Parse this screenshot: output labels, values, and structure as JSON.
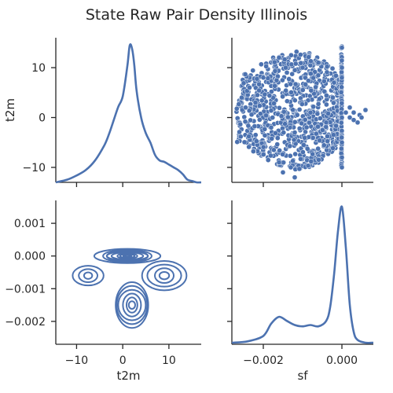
{
  "figure": {
    "title": "State Raw Pair Density Illinois"
  },
  "colors": {
    "series": "#4c72b0",
    "axis": "#262626",
    "background": "#ffffff"
  },
  "chart_data": [
    {
      "id": "t2m-vs-t2m",
      "type": "line",
      "kind": "kde",
      "panel": "top-left",
      "xlabel": "",
      "ylabel": "t2m",
      "xlim": [
        -14.5,
        17
      ],
      "ylim": [
        -13,
        16
      ],
      "xticks": [
        -10,
        0,
        10
      ],
      "yticks": [
        -10,
        0,
        10
      ],
      "ytick_labels": [
        "−10",
        "0",
        "10"
      ],
      "x": [
        -14.5,
        -12,
        -10,
        -8,
        -6,
        -4,
        -3,
        -2,
        -1,
        0,
        1,
        1.5,
        2,
        2.5,
        3,
        4,
        5,
        6,
        7,
        8,
        9,
        10,
        11,
        12,
        13,
        14,
        15,
        16,
        17
      ],
      "density": [
        0,
        0.02,
        0.05,
        0.09,
        0.16,
        0.27,
        0.35,
        0.45,
        0.55,
        0.63,
        0.85,
        1.0,
        0.98,
        0.86,
        0.67,
        0.47,
        0.36,
        0.29,
        0.2,
        0.16,
        0.15,
        0.13,
        0.11,
        0.09,
        0.06,
        0.02,
        0.01,
        0,
        0
      ]
    },
    {
      "id": "sf-vs-t2m",
      "type": "scatter",
      "panel": "top-right",
      "xlabel": "",
      "ylabel": "",
      "xlim": [
        -0.0028,
        0.0008
      ],
      "ylim": [
        -13,
        16
      ],
      "xticks": [
        -0.002,
        0.0
      ],
      "yticks": [
        -10,
        0,
        10
      ],
      "cloud": {
        "x_range": [
          -0.0027,
          0.0
        ],
        "y_range": [
          -12,
          14.5
        ],
        "mean_x": -0.0011,
        "mean_y": 1.5
      },
      "x": [
        -0.00255,
        -0.00245,
        -0.00235,
        -0.0022,
        -0.002,
        -0.0018,
        -0.0016,
        -0.0014,
        -0.0012,
        -0.001,
        -0.0008,
        -0.0006,
        -0.0004,
        -0.0002,
        0.0,
        0.0,
        0.0,
        0.0,
        0.0,
        0.0,
        0.0001,
        0.0002,
        0.0003,
        0.0004,
        0.00045,
        0.0005,
        0.0006,
        0.0003,
        0.0002,
        -0.0015,
        -0.0013,
        -0.0016,
        -0.0012
      ],
      "y": [
        4,
        2,
        6,
        3,
        8,
        -2,
        12,
        9,
        -3,
        10,
        1,
        11,
        -1,
        7,
        14,
        10,
        0,
        -5,
        -8,
        -10,
        1,
        0,
        1,
        -1,
        0.5,
        0,
        1.5,
        -0.5,
        2,
        -11,
        -10,
        -9,
        -12
      ]
    },
    {
      "id": "t2m-vs-sf",
      "type": "contour",
      "kind": "kde",
      "panel": "bottom-left",
      "xlabel": "t2m",
      "ylabel": "",
      "xlim": [
        -14.5,
        17
      ],
      "ylim": [
        -0.0027,
        0.0017
      ],
      "xticks": [
        -10,
        0,
        10
      ],
      "xtick_labels": [
        "−10",
        "0",
        "10"
      ],
      "yticks": [
        -0.002,
        -0.001,
        0.0,
        0.001
      ],
      "ytick_labels": [
        "−0.002",
        "−0.001",
        "0.000",
        "0.001"
      ],
      "modes": [
        {
          "x": 1,
          "y": 0.0,
          "rx": 6.5,
          "ry": 0.00022,
          "levels": 8
        },
        {
          "x": 2,
          "y": -0.0015,
          "rx": 4,
          "ry": 0.0007,
          "levels": 6
        },
        {
          "x": 9,
          "y": -0.0006,
          "rx": 4.5,
          "ry": 0.00045,
          "levels": 4
        },
        {
          "x": -7.5,
          "y": -0.0006,
          "rx": 3,
          "ry": 0.0003,
          "levels": 3
        }
      ]
    },
    {
      "id": "sf-vs-sf",
      "type": "line",
      "kind": "kde",
      "panel": "bottom-right",
      "xlabel": "sf",
      "ylabel": "",
      "xlim": [
        -0.0028,
        0.0008
      ],
      "ylim": [
        -0.0027,
        0.0017
      ],
      "xticks": [
        -0.002,
        0.0
      ],
      "xtick_labels": [
        "−0.002",
        "0.000"
      ],
      "yticks": [
        -0.002,
        -0.001,
        0.0,
        0.001
      ],
      "x": [
        -0.0028,
        -0.0024,
        -0.002,
        -0.0018,
        -0.0016,
        -0.0014,
        -0.0012,
        -0.001,
        -0.0008,
        -0.0006,
        -0.0004,
        -0.0003,
        -0.0002,
        -0.0001,
        0.0,
        0.0001,
        0.0002,
        0.0003,
        0.0004,
        0.0006,
        0.0008
      ],
      "density": [
        0,
        0.01,
        0.05,
        0.14,
        0.19,
        0.16,
        0.13,
        0.12,
        0.13,
        0.12,
        0.16,
        0.26,
        0.5,
        0.82,
        1.0,
        0.7,
        0.28,
        0.08,
        0.02,
        0,
        0
      ]
    }
  ]
}
